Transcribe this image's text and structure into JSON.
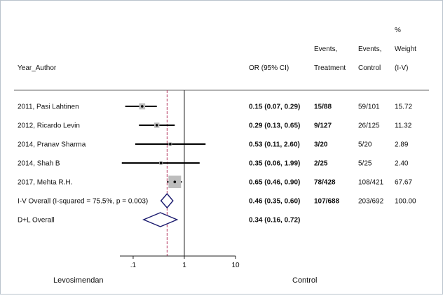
{
  "chart_data": {
    "type": "forest",
    "scale": "log",
    "headers": {
      "study": "Year_Author",
      "or": "OR (95% CI)",
      "events_treatment": [
        "Events,",
        "Treatment"
      ],
      "events_control": [
        "Events,",
        "Control"
      ],
      "weight": [
        "%",
        "Weight",
        "(I-V)"
      ]
    },
    "studies": [
      {
        "label": "2011, Pasi Lahtinen",
        "or": 0.15,
        "lo": 0.07,
        "hi": 0.29,
        "or_text": "0.15 (0.07, 0.29)",
        "treatment": "15/88",
        "control": "59/101",
        "weight": "15.72",
        "weight_value": 15.72
      },
      {
        "label": "2012, Ricardo Levin",
        "or": 0.29,
        "lo": 0.13,
        "hi": 0.65,
        "or_text": "0.29 (0.13, 0.65)",
        "treatment": "9/127",
        "control": "26/125",
        "weight": "11.32",
        "weight_value": 11.32
      },
      {
        "label": "2014, Pranav Sharma",
        "or": 0.53,
        "lo": 0.11,
        "hi": 2.6,
        "or_text": "0.53 (0.11, 2.60)",
        "treatment": "3/20",
        "control": "5/20",
        "weight": "2.89",
        "weight_value": 2.89
      },
      {
        "label": "2014, Shah B",
        "or": 0.35,
        "lo": 0.06,
        "hi": 1.99,
        "or_text": "0.35 (0.06, 1.99)",
        "treatment": "2/25",
        "control": "5/25",
        "weight": "2.40",
        "weight_value": 2.4
      },
      {
        "label": "2017, Mehta R.H.",
        "or": 0.65,
        "lo": 0.46,
        "hi": 0.9,
        "or_text": "0.65 (0.46, 0.90)",
        "treatment": "78/428",
        "control": "108/421",
        "weight": "67.67",
        "weight_value": 67.67
      }
    ],
    "overall": [
      {
        "label": "I-V Overall  (I-squared = 75.5%, p = 0.003)",
        "or": 0.46,
        "lo": 0.35,
        "hi": 0.6,
        "or_text": "0.46 (0.35, 0.60)",
        "treatment": "107/688",
        "control": "203/692",
        "weight": "100.00"
      },
      {
        "label": "D+L Overall",
        "or": 0.34,
        "lo": 0.16,
        "hi": 0.72,
        "or_text": "0.34 (0.16, 0.72)",
        "treatment": "",
        "control": "",
        "weight": ""
      }
    ],
    "xticks": [
      0.1,
      1,
      10
    ],
    "xtick_labels": [
      ".1",
      "1",
      "10"
    ],
    "xlim": [
      0.055,
      10
    ],
    "null_value": 1,
    "overall_line": 0.46,
    "xlabel_left": "Levosimendan",
    "xlabel_right": "Control"
  },
  "colors": {
    "diamond": "#1a1a6e",
    "overall_line": "#b0305a",
    "box": "#bdbdbd",
    "border": "#b9c3cc"
  }
}
